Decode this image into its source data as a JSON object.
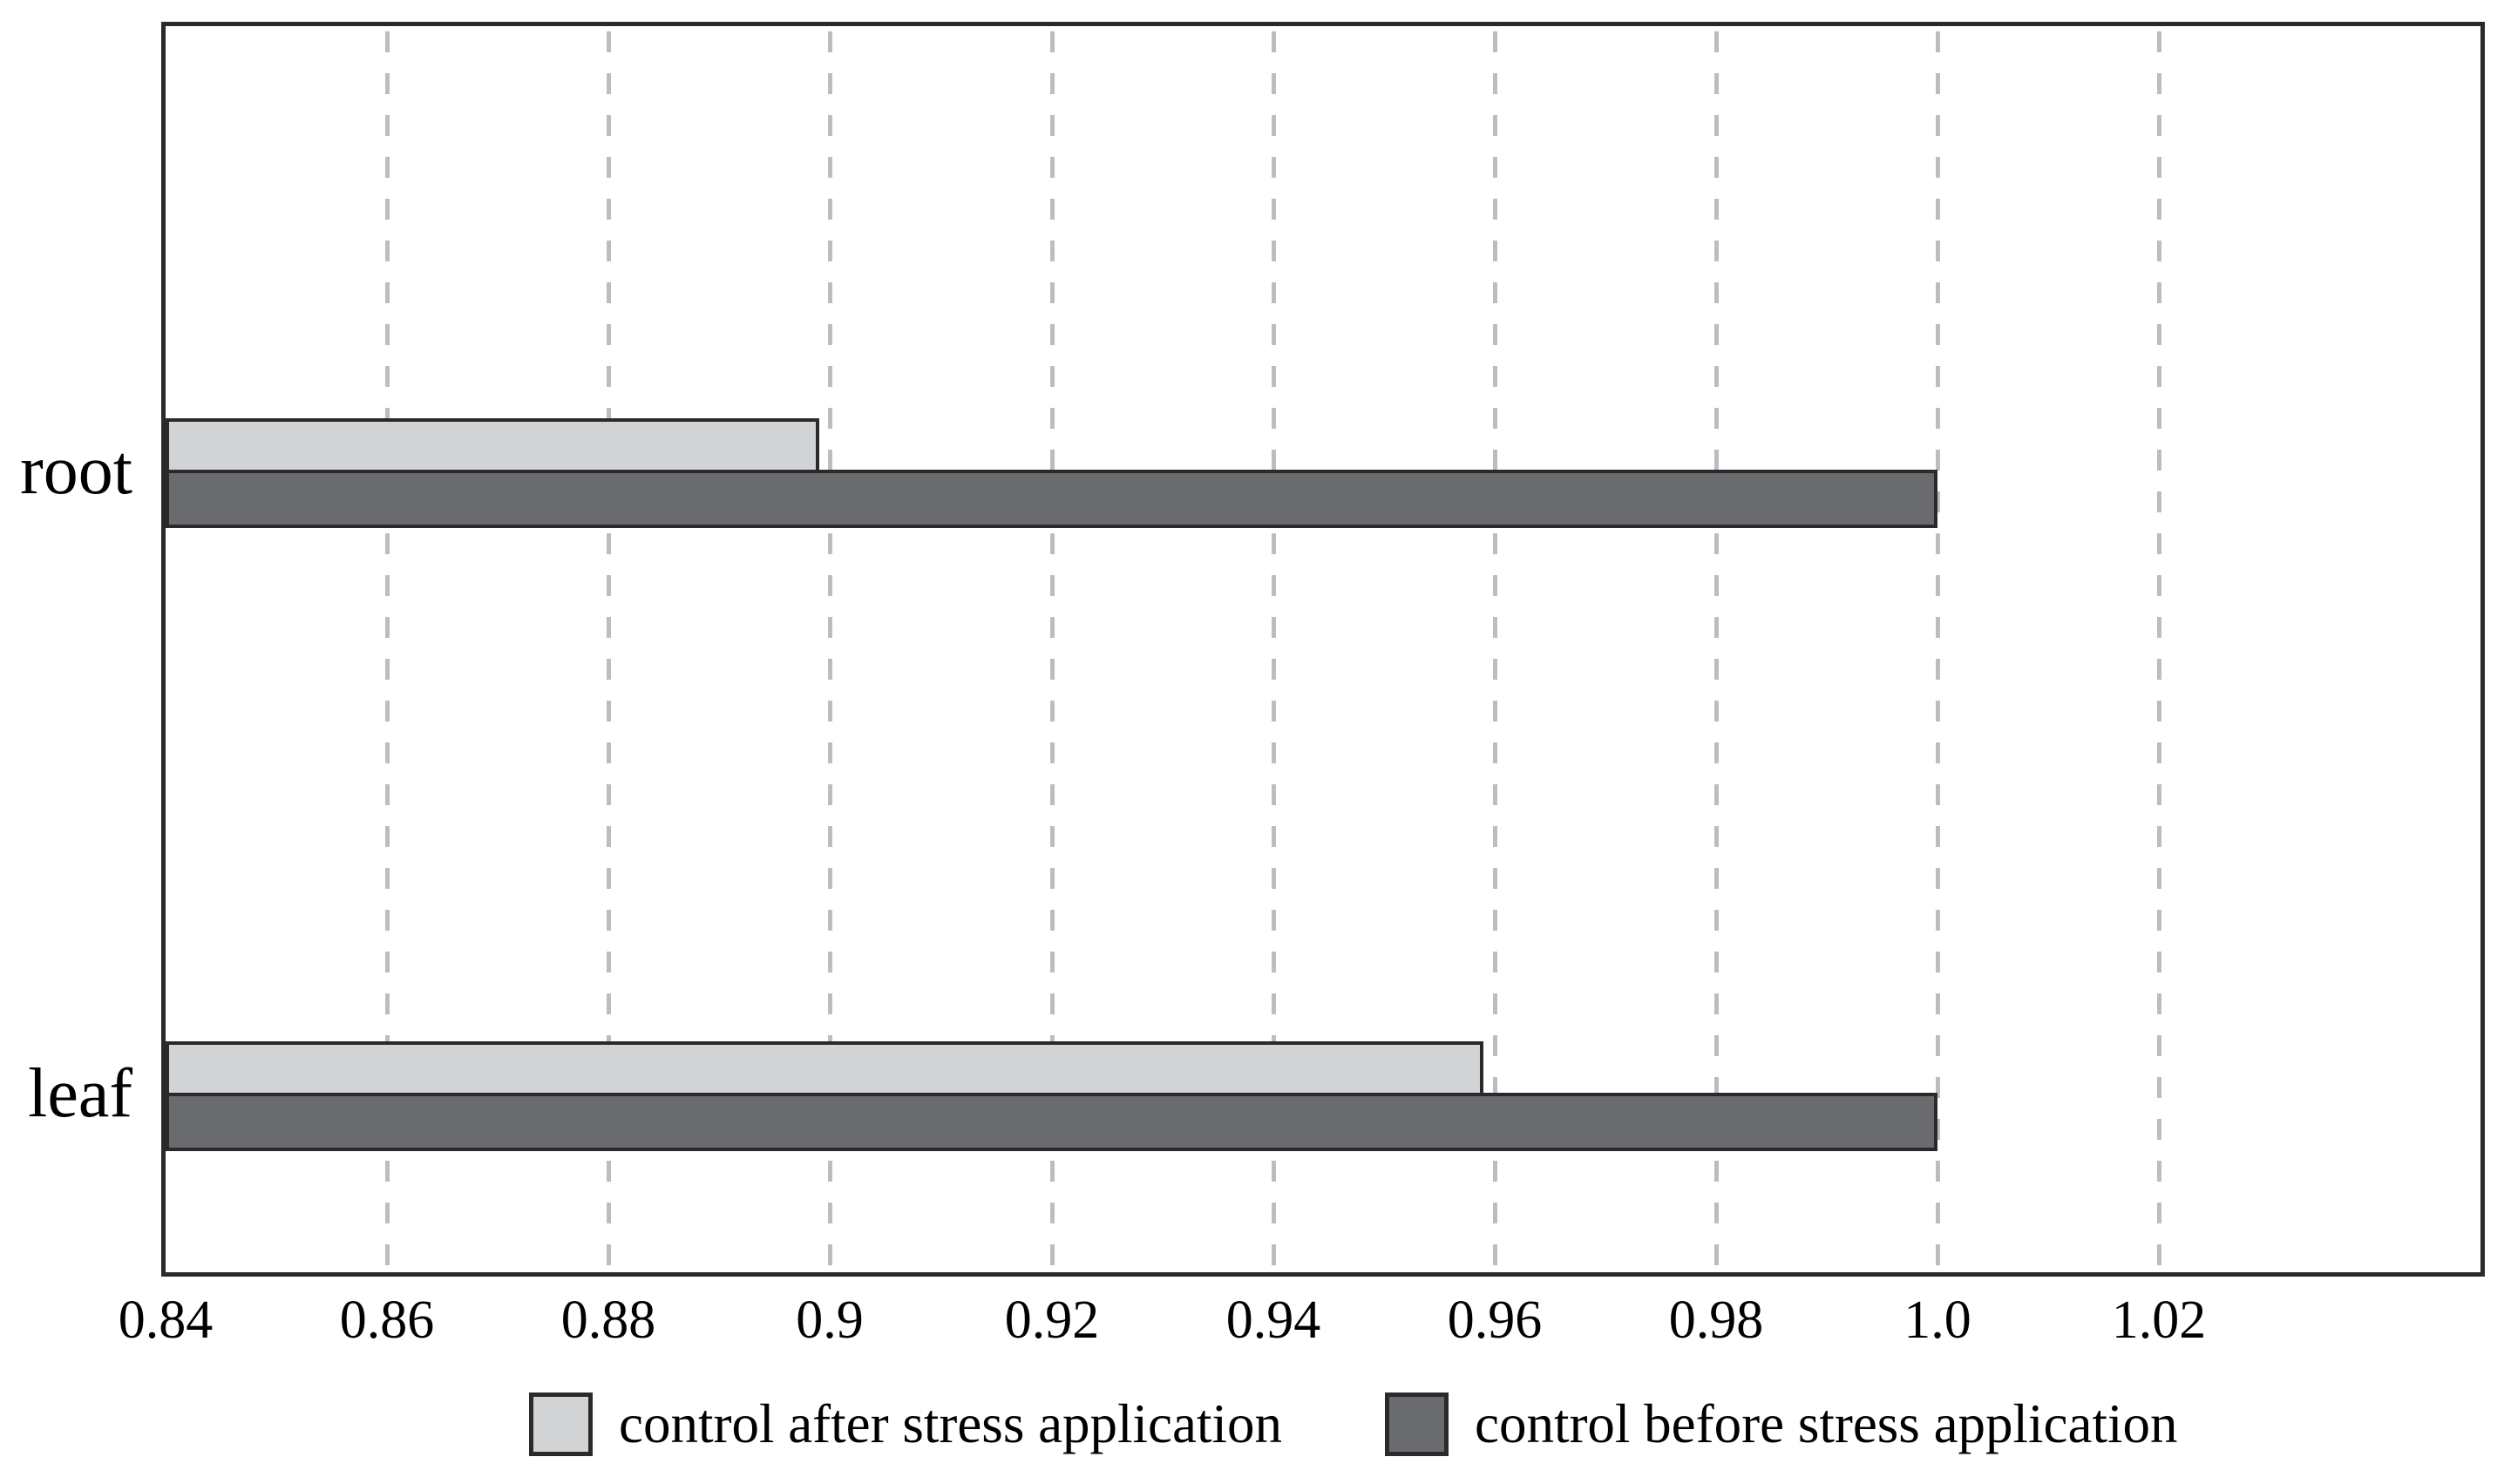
{
  "chart_data": {
    "type": "bar",
    "orientation": "horizontal",
    "title": "",
    "xlabel": "",
    "ylabel": "",
    "categories": [
      "root",
      "leaf"
    ],
    "series": [
      {
        "name": "control after stress application",
        "color": "#d1d3d5",
        "values": [
          0.899,
          0.959
        ]
      },
      {
        "name": "control before stress application",
        "color": "#6a6b6e",
        "values": [
          1.0,
          1.0
        ]
      }
    ],
    "xlim": [
      0.84,
      1.049
    ],
    "xticks": [
      {
        "value": 0.84,
        "label": "0.84"
      },
      {
        "value": 0.86,
        "label": "0.86"
      },
      {
        "value": 0.88,
        "label": "0.88"
      },
      {
        "value": 0.9,
        "label": "0.9"
      },
      {
        "value": 0.92,
        "label": "0.92"
      },
      {
        "value": 0.94,
        "label": "0.94"
      },
      {
        "value": 0.96,
        "label": "0.96"
      },
      {
        "value": 0.98,
        "label": "0.98"
      },
      {
        "value": 1.0,
        "label": "1.0"
      },
      {
        "value": 1.02,
        "label": "1.02"
      }
    ],
    "grid": "vertical-dashed",
    "legend_position": "bottom"
  },
  "styles": {
    "background": "#ffffff",
    "plot_border": "#2b2a2b",
    "bar_border": "#2b2a2b",
    "gridline": "#bdbdbf",
    "text": "#000000"
  }
}
